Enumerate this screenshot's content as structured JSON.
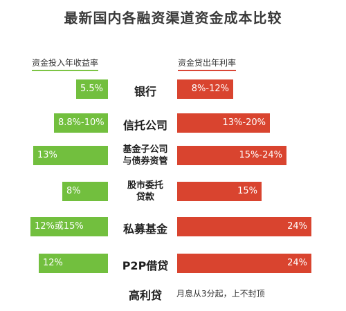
{
  "title": "最新国内各融资渠道资金成本比较",
  "legend": {
    "left": "资金投入年收益率",
    "right": "资金贷出年利率"
  },
  "colors": {
    "green": "#72bf3e",
    "red": "#d9442f"
  },
  "chart_data": {
    "type": "bar",
    "layout": "diverging-horizontal",
    "categories": [
      "银行",
      "信托公司",
      "基金子公司\n与债券资管",
      "股市委托\n贷款",
      "私募基金",
      "P2P借贷",
      "高利贷"
    ],
    "series": [
      {
        "name": "资金投入年收益率",
        "color": "#72bf3e",
        "labels": [
          "5.5%",
          "8.8%-10%",
          "13%",
          "8%",
          "12%或15%",
          "12%",
          ""
        ],
        "values": [
          5.5,
          9.4,
          13,
          8,
          13.5,
          12,
          null
        ]
      },
      {
        "name": "资金贷出年利率",
        "color": "#d9442f",
        "labels": [
          "8%-12%",
          "13%-20%",
          "15%-24%",
          "15%",
          "24%",
          "24%",
          "月息从3分起，上不封顶"
        ],
        "values": [
          10,
          16.5,
          19.5,
          15,
          24,
          24,
          null
        ]
      }
    ]
  }
}
